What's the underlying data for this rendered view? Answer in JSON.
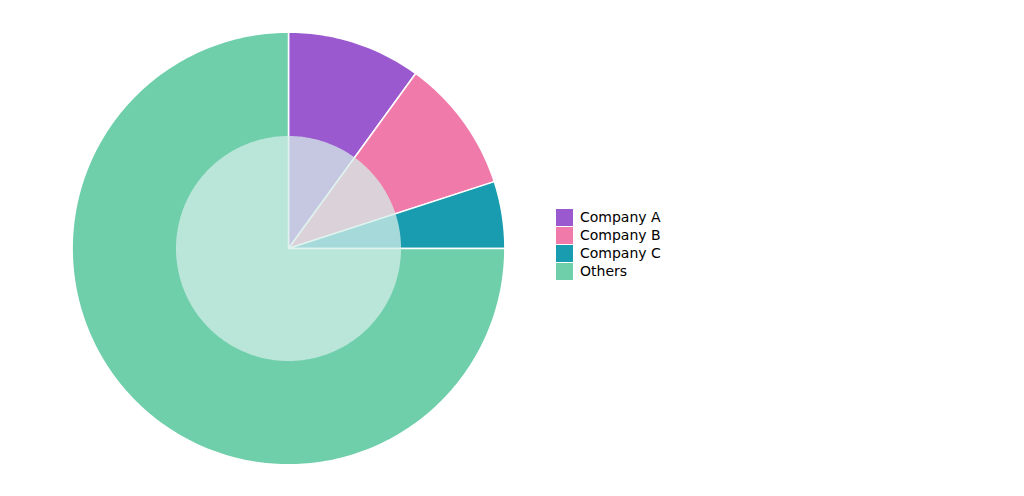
{
  "chart_data": {
    "type": "pie",
    "categories": [
      "Company A",
      "Company B",
      "Company C",
      "Others"
    ],
    "values": [
      10,
      10,
      5,
      75
    ],
    "colors": [
      "#9b59d0",
      "#f07baa",
      "#1a9cb0",
      "#6ecfaa"
    ],
    "legend": "right"
  }
}
